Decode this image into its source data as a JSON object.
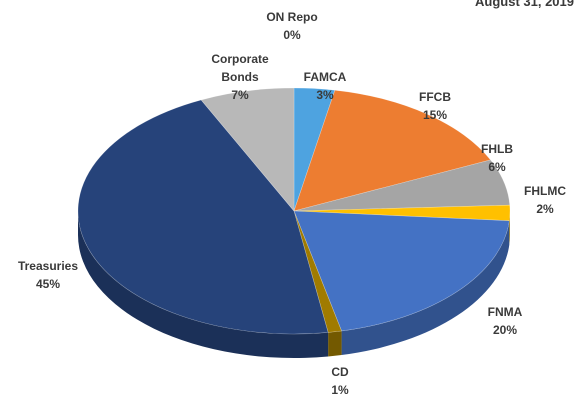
{
  "chart_data": {
    "type": "pie3d",
    "title": "August 31, 2019",
    "categories": [
      "ON Repo",
      "FAMCA",
      "FFCB",
      "FHLB",
      "FHLMC",
      "FNMA",
      "CD",
      "Treasuries",
      "Corporate Bonds"
    ],
    "values": [
      0,
      3,
      15,
      6,
      2,
      20,
      1,
      45,
      7
    ],
    "value_labels": [
      "0%",
      "3%",
      "15%",
      "6%",
      "2%",
      "20%",
      "1%",
      "45%",
      "7%"
    ],
    "colors": [
      "#5fa8e6",
      "#4ea3e0",
      "#ed7d31",
      "#a5a5a5",
      "#ffc000",
      "#4472c4",
      "#a07b00",
      "#26437a",
      "#b8b8b8"
    ]
  }
}
